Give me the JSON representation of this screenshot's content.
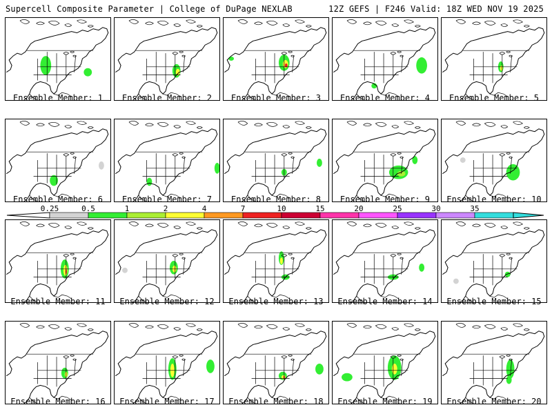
{
  "header": {
    "left": "Supercell Composite Parameter | College of DuPage NEXLAB",
    "right": "12Z GEFS | F246 Valid: 18Z WED NOV 19 2025"
  },
  "colorbar": {
    "ticks": [
      "0.25",
      "0.5",
      "1",
      "2",
      "4",
      "7",
      "10",
      "15",
      "20",
      "25",
      "30",
      "35"
    ],
    "colors": [
      "#d3d3d3",
      "#33ee33",
      "#aaee33",
      "#ffff33",
      "#ff9922",
      "#ee2222",
      "#cc0033",
      "#ff33aa",
      "#ff55ff",
      "#9933ff",
      "#cc88ff",
      "#33dddd"
    ]
  },
  "panels": [
    {
      "label": "Ensemble Member: 1"
    },
    {
      "label": "Ensemble Member: 2"
    },
    {
      "label": "Ensemble Member: 3"
    },
    {
      "label": "Ensemble Member: 4"
    },
    {
      "label": "Ensemble Member: 5"
    },
    {
      "label": "Ensemble Member: 6"
    },
    {
      "label": "Ensemble Member: 7"
    },
    {
      "label": "Ensemble Member: 8"
    },
    {
      "label": "Ensemble Member: 9"
    },
    {
      "label": "Ensemble Member: 10"
    },
    {
      "label": "Ensemble Member: 11"
    },
    {
      "label": "Ensemble Member: 12"
    },
    {
      "label": "Ensemble Member: 13"
    },
    {
      "label": "Ensemble Member: 14"
    },
    {
      "label": "Ensemble Member: 15"
    },
    {
      "label": "Ensemble Member: 16"
    },
    {
      "label": "Ensemble Member: 17"
    },
    {
      "label": "Ensemble Member: 18"
    },
    {
      "label": "Ensemble Member: 19"
    },
    {
      "label": "Ensemble Member: 20"
    }
  ]
}
